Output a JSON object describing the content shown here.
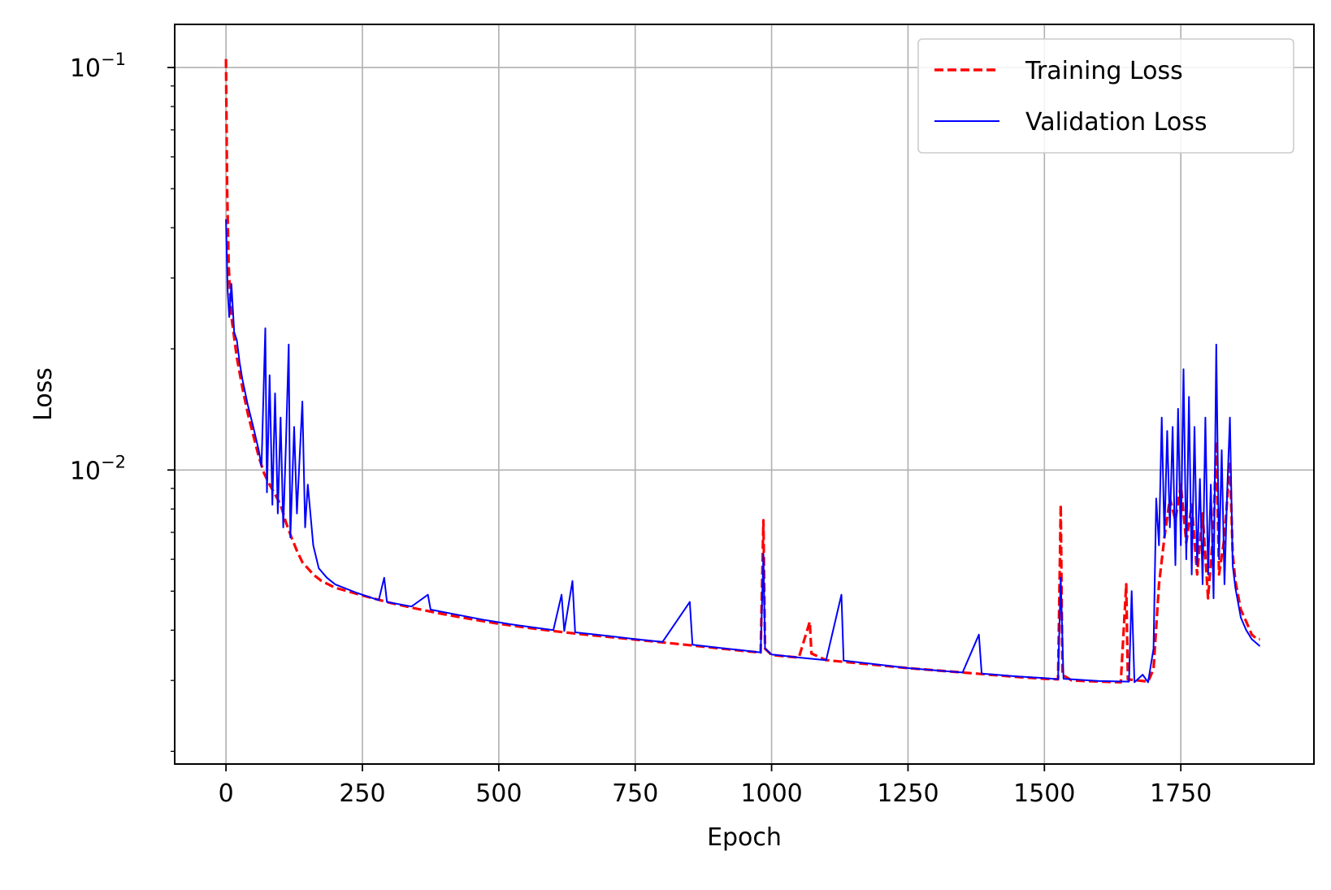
{
  "chart_data": {
    "type": "line",
    "title": "",
    "xlabel": "Epoch",
    "ylabel": "Loss",
    "yscale": "log",
    "xlim": [
      -94,
      1994
    ],
    "ylim": [
      0.00186,
      0.128
    ],
    "grid": true,
    "legend_position": "top-right",
    "x_ticks": [
      {
        "value": 0,
        "label": "0"
      },
      {
        "value": 250,
        "label": "250"
      },
      {
        "value": 500,
        "label": "500"
      },
      {
        "value": 750,
        "label": "750"
      },
      {
        "value": 1000,
        "label": "1000"
      },
      {
        "value": 1250,
        "label": "1250"
      },
      {
        "value": 1500,
        "label": "1500"
      },
      {
        "value": 1750,
        "label": "1750"
      }
    ],
    "y_ticks": [
      {
        "value": 0.1,
        "base": "10",
        "exp": "−1"
      },
      {
        "value": 0.01,
        "base": "10",
        "exp": "−2"
      }
    ],
    "series": [
      {
        "name": "Training Loss",
        "color": "#ff0000",
        "style": "dashed",
        "points": [
          [
            0,
            0.105
          ],
          [
            2,
            0.05
          ],
          [
            5,
            0.032
          ],
          [
            10,
            0.024
          ],
          [
            20,
            0.019
          ],
          [
            30,
            0.016
          ],
          [
            40,
            0.0138
          ],
          [
            50,
            0.0122
          ],
          [
            60,
            0.0108
          ],
          [
            70,
            0.0098
          ],
          [
            80,
            0.0092
          ],
          [
            90,
            0.0087
          ],
          [
            100,
            0.0082
          ],
          [
            110,
            0.0074
          ],
          [
            120,
            0.0068
          ],
          [
            130,
            0.0063
          ],
          [
            140,
            0.0059
          ],
          [
            150,
            0.0057
          ],
          [
            160,
            0.0055
          ],
          [
            175,
            0.0053
          ],
          [
            200,
            0.0051
          ],
          [
            250,
            0.00488
          ],
          [
            300,
            0.00468
          ],
          [
            350,
            0.00452
          ],
          [
            400,
            0.00438
          ],
          [
            450,
            0.00426
          ],
          [
            500,
            0.00415
          ],
          [
            550,
            0.00406
          ],
          [
            600,
            0.00398
          ],
          [
            650,
            0.00391
          ],
          [
            700,
            0.00385
          ],
          [
            750,
            0.00379
          ],
          [
            800,
            0.00373
          ],
          [
            850,
            0.00367
          ],
          [
            900,
            0.00361
          ],
          [
            950,
            0.00355
          ],
          [
            980,
            0.00352
          ],
          [
            985,
            0.0075
          ],
          [
            988,
            0.0036
          ],
          [
            1000,
            0.00347
          ],
          [
            1050,
            0.00342
          ],
          [
            1070,
            0.0042
          ],
          [
            1073,
            0.0035
          ],
          [
            1100,
            0.00337
          ],
          [
            1150,
            0.00332
          ],
          [
            1200,
            0.00327
          ],
          [
            1250,
            0.00322
          ],
          [
            1300,
            0.00318
          ],
          [
            1350,
            0.00314
          ],
          [
            1400,
            0.0031
          ],
          [
            1450,
            0.00306
          ],
          [
            1500,
            0.00303
          ],
          [
            1525,
            0.00302
          ],
          [
            1530,
            0.0082
          ],
          [
            1533,
            0.0031
          ],
          [
            1550,
            0.003
          ],
          [
            1600,
            0.00298
          ],
          [
            1640,
            0.00297
          ],
          [
            1650,
            0.0052
          ],
          [
            1653,
            0.00302
          ],
          [
            1690,
            0.00298
          ],
          [
            1700,
            0.0032
          ],
          [
            1710,
            0.0052
          ],
          [
            1720,
            0.0068
          ],
          [
            1730,
            0.0085
          ],
          [
            1740,
            0.0075
          ],
          [
            1750,
            0.0092
          ],
          [
            1760,
            0.0066
          ],
          [
            1770,
            0.0082
          ],
          [
            1780,
            0.0055
          ],
          [
            1790,
            0.0078
          ],
          [
            1800,
            0.0048
          ],
          [
            1810,
            0.0072
          ],
          [
            1815,
            0.0118
          ],
          [
            1820,
            0.0055
          ],
          [
            1830,
            0.0068
          ],
          [
            1840,
            0.0105
          ],
          [
            1845,
            0.0062
          ],
          [
            1850,
            0.0053
          ],
          [
            1860,
            0.0045
          ],
          [
            1870,
            0.0042
          ],
          [
            1880,
            0.0039
          ],
          [
            1890,
            0.0038
          ],
          [
            1895,
            0.0038
          ]
        ]
      },
      {
        "name": "Validation Loss",
        "color": "#0000ff",
        "style": "solid",
        "points": [
          [
            0,
            0.042
          ],
          [
            3,
            0.028
          ],
          [
            6,
            0.024
          ],
          [
            10,
            0.029
          ],
          [
            15,
            0.022
          ],
          [
            20,
            0.021
          ],
          [
            25,
            0.0185
          ],
          [
            30,
            0.0168
          ],
          [
            40,
            0.0145
          ],
          [
            50,
            0.0128
          ],
          [
            60,
            0.0112
          ],
          [
            65,
            0.0102
          ],
          [
            72,
            0.0225
          ],
          [
            75,
            0.0088
          ],
          [
            80,
            0.0172
          ],
          [
            85,
            0.0082
          ],
          [
            90,
            0.0155
          ],
          [
            95,
            0.0078
          ],
          [
            100,
            0.0135
          ],
          [
            105,
            0.0072
          ],
          [
            110,
            0.0118
          ],
          [
            115,
            0.0205
          ],
          [
            118,
            0.0068
          ],
          [
            125,
            0.0128
          ],
          [
            130,
            0.0078
          ],
          [
            140,
            0.0148
          ],
          [
            145,
            0.0072
          ],
          [
            150,
            0.0092
          ],
          [
            160,
            0.0065
          ],
          [
            170,
            0.0057
          ],
          [
            185,
            0.0054
          ],
          [
            200,
            0.0052
          ],
          [
            240,
            0.00495
          ],
          [
            280,
            0.00475
          ],
          [
            290,
            0.0054
          ],
          [
            295,
            0.0047
          ],
          [
            340,
            0.00458
          ],
          [
            370,
            0.0049
          ],
          [
            375,
            0.0045
          ],
          [
            420,
            0.00438
          ],
          [
            470,
            0.00425
          ],
          [
            520,
            0.00414
          ],
          [
            560,
            0.00407
          ],
          [
            600,
            0.004
          ],
          [
            615,
            0.0049
          ],
          [
            620,
            0.00398
          ],
          [
            635,
            0.0053
          ],
          [
            640,
            0.00395
          ],
          [
            700,
            0.00387
          ],
          [
            750,
            0.0038
          ],
          [
            800,
            0.00374
          ],
          [
            850,
            0.0047
          ],
          [
            855,
            0.00368
          ],
          [
            900,
            0.00362
          ],
          [
            950,
            0.00356
          ],
          [
            980,
            0.00352
          ],
          [
            985,
            0.0062
          ],
          [
            988,
            0.0036
          ],
          [
            1000,
            0.00348
          ],
          [
            1050,
            0.00342
          ],
          [
            1100,
            0.00337
          ],
          [
            1128,
            0.0049
          ],
          [
            1132,
            0.00336
          ],
          [
            1200,
            0.00328
          ],
          [
            1250,
            0.00322
          ],
          [
            1300,
            0.00318
          ],
          [
            1350,
            0.00314
          ],
          [
            1380,
            0.0039
          ],
          [
            1385,
            0.00312
          ],
          [
            1450,
            0.00307
          ],
          [
            1500,
            0.00304
          ],
          [
            1525,
            0.00302
          ],
          [
            1530,
            0.0054
          ],
          [
            1535,
            0.00303
          ],
          [
            1600,
            0.00299
          ],
          [
            1655,
            0.00298
          ],
          [
            1660,
            0.005
          ],
          [
            1665,
            0.00297
          ],
          [
            1680,
            0.0031
          ],
          [
            1690,
            0.00297
          ],
          [
            1700,
            0.0036
          ],
          [
            1705,
            0.0085
          ],
          [
            1710,
            0.0065
          ],
          [
            1715,
            0.0135
          ],
          [
            1720,
            0.0068
          ],
          [
            1725,
            0.0125
          ],
          [
            1730,
            0.0072
          ],
          [
            1735,
            0.0128
          ],
          [
            1740,
            0.0058
          ],
          [
            1745,
            0.0142
          ],
          [
            1750,
            0.0065
          ],
          [
            1755,
            0.0178
          ],
          [
            1760,
            0.006
          ],
          [
            1765,
            0.0152
          ],
          [
            1770,
            0.0055
          ],
          [
            1775,
            0.0128
          ],
          [
            1780,
            0.0058
          ],
          [
            1785,
            0.0095
          ],
          [
            1790,
            0.0052
          ],
          [
            1795,
            0.0135
          ],
          [
            1800,
            0.0055
          ],
          [
            1805,
            0.0092
          ],
          [
            1810,
            0.0048
          ],
          [
            1815,
            0.0205
          ],
          [
            1820,
            0.006
          ],
          [
            1825,
            0.0112
          ],
          [
            1830,
            0.0052
          ],
          [
            1835,
            0.0088
          ],
          [
            1840,
            0.0135
          ],
          [
            1845,
            0.0058
          ],
          [
            1850,
            0.0051
          ],
          [
            1860,
            0.0043
          ],
          [
            1870,
            0.004
          ],
          [
            1880,
            0.0038
          ],
          [
            1890,
            0.0037
          ],
          [
            1895,
            0.00365
          ]
        ]
      }
    ]
  }
}
